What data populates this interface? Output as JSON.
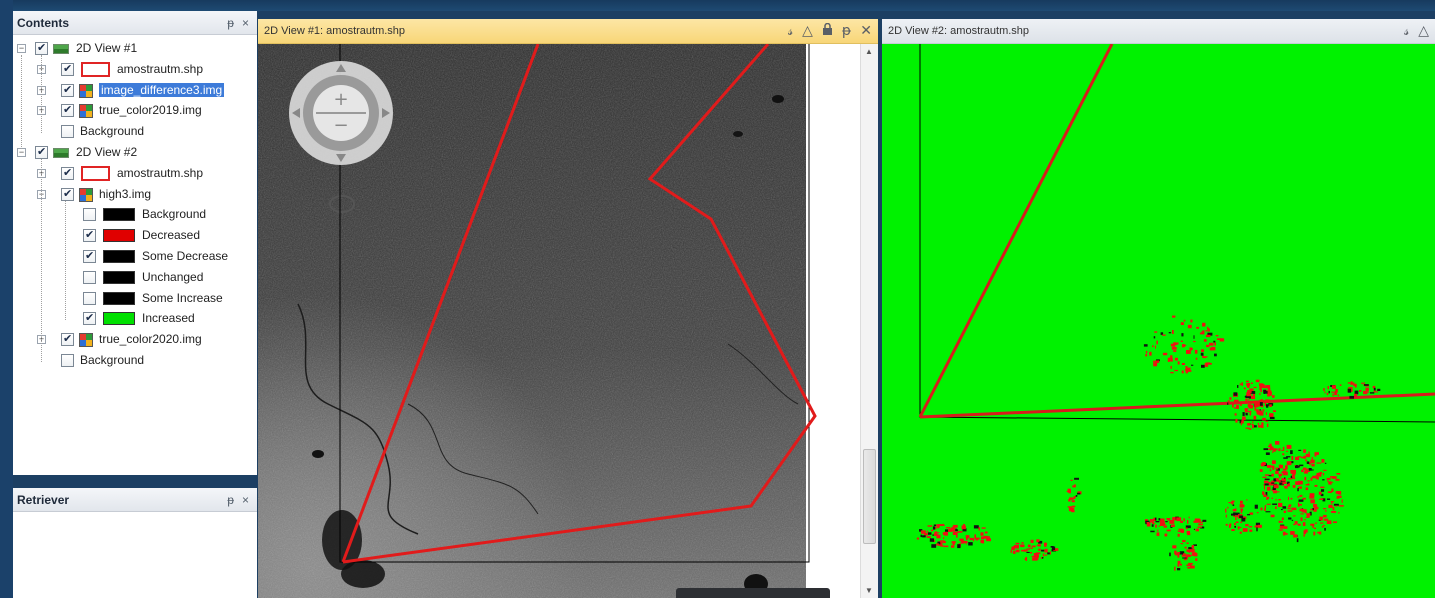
{
  "contents_panel": {
    "title": "Contents",
    "pin_glyph": "ᵽ",
    "close_glyph": "×",
    "tree": {
      "view1": {
        "label": "2D View #1"
      },
      "view1_layers": [
        {
          "label": "amostrautm.shp",
          "icon": "shapefile-icon",
          "checked": true
        },
        {
          "label": "image_difference3.img",
          "icon": "raster-icon",
          "checked": true,
          "selected": true
        },
        {
          "label": "true_color2019.img",
          "icon": "raster-icon",
          "checked": true
        },
        {
          "label": "Background",
          "checked": false
        }
      ],
      "view2": {
        "label": "2D View #2"
      },
      "view2_layers": [
        {
          "label": "amostrautm.shp",
          "icon": "shapefile-icon",
          "checked": true
        },
        {
          "label": "high3.img",
          "icon": "raster-icon",
          "checked": true
        }
      ],
      "classes": [
        {
          "label": "Background",
          "color": "#000000",
          "checked": false
        },
        {
          "label": "Decreased",
          "color": "#e00000",
          "checked": true
        },
        {
          "label": "Some Decrease",
          "color": "#000000",
          "checked": true
        },
        {
          "label": "Unchanged",
          "color": "#000000",
          "checked": false
        },
        {
          "label": "Some Increase",
          "color": "#000000",
          "checked": false
        },
        {
          "label": "Increased",
          "color": "#00e000",
          "checked": true
        }
      ],
      "view2_layers_after": [
        {
          "label": "true_color2020.img",
          "icon": "raster-icon",
          "checked": true
        },
        {
          "label": "Background",
          "checked": false
        }
      ]
    }
  },
  "retriever_panel": {
    "title": "Retriever",
    "pin_glyph": "ᵽ",
    "close_glyph": "×"
  },
  "view1": {
    "tab_title": "2D View #1: amostrautm.shp",
    "icons": [
      "link-icon",
      "warning-icon",
      "lock-icon",
      "pin-icon",
      "close-icon"
    ],
    "glyphs": {
      "link": "𝓈",
      "warning": "△",
      "lock": "🔒",
      "pin": "ᵽ",
      "close": "✕"
    },
    "zoom_in": "+",
    "zoom_out": "−"
  },
  "view2": {
    "tab_title": "2D View #2: amostrautm.shp",
    "glyphs": {
      "link": "𝓈",
      "warning": "△"
    }
  },
  "colors": {
    "polygon": "#e11b1b",
    "increased": "#00f200",
    "decreased": "#f01010",
    "selection": "#3d7bd9"
  }
}
